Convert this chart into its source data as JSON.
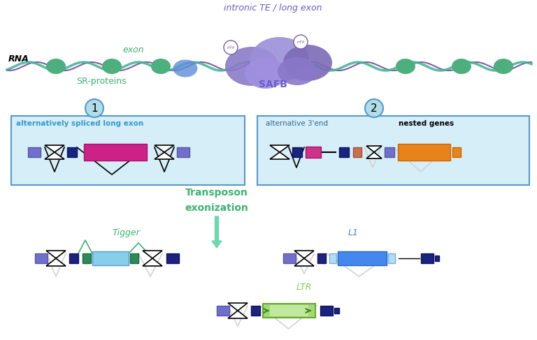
{
  "bg_color": "#ffffff",
  "title_text": "intronic TE / long exon",
  "rna_label": "RNA",
  "exon_label": "exon",
  "sr_proteins_label": "SR-proteins",
  "safb_label": "SAFB",
  "circle1_label": "1",
  "circle2_label": "2",
  "box1_title": "alternatively spliced long exon",
  "box2_title_left": "alternative 3'end",
  "box2_title_right": "nested genes",
  "transposon_label": "Transposon\n\nexonization",
  "tigger_label": "Tigger",
  "l1_label": "L1",
  "ltr_label": "LTR",
  "colors": {
    "green": "#3cb371",
    "teal": "#40c8a0",
    "purple_dark": "#7b68ee",
    "purple_light": "#b0a0d8",
    "navy": "#1a237e",
    "blue": "#4169e1",
    "light_blue": "#add8e6",
    "magenta": "#cc2288",
    "orange": "#e8821a",
    "box_bg": "#d6eef8",
    "circle_bg": "#b0dde8",
    "arrow_color": "#6dd8b0",
    "text_green": "#3cb371",
    "text_purple": "#6a5acd",
    "text_blue": "#4169e1"
  }
}
